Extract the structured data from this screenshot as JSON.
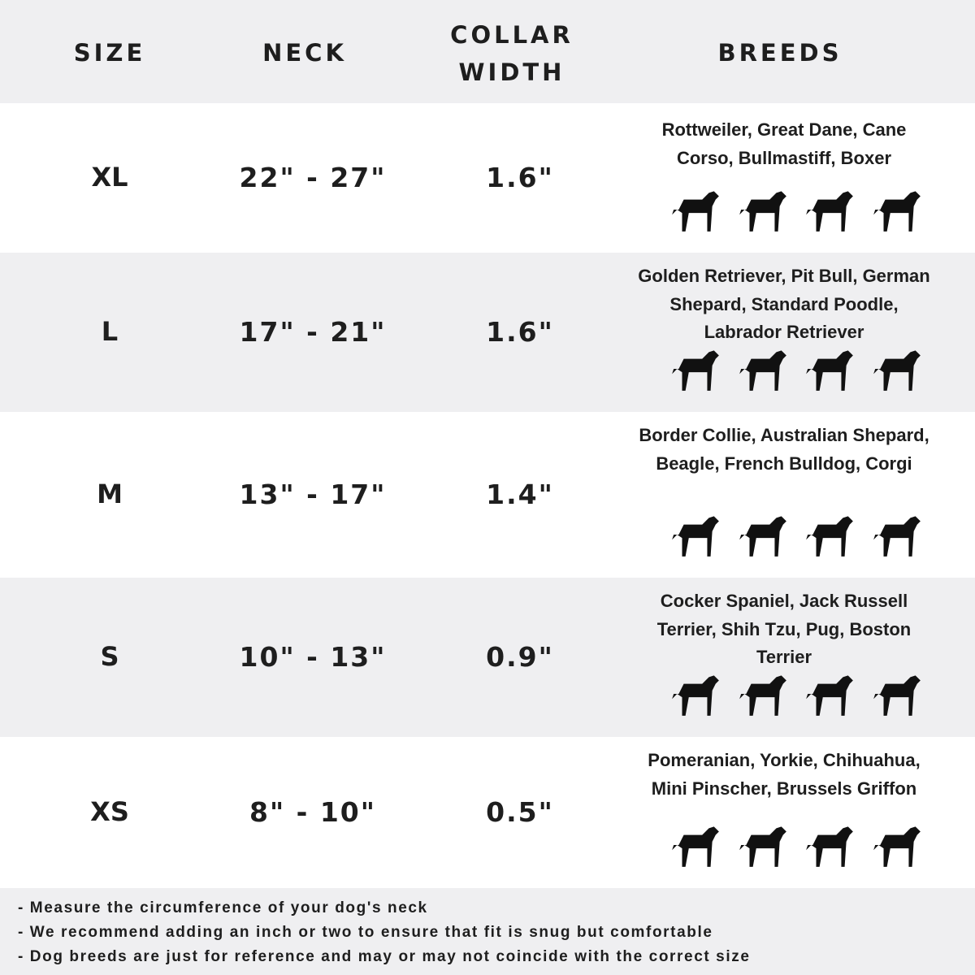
{
  "header": {
    "size": "SIZE",
    "neck": "NECK",
    "collar_width": "COLLAR WIDTH",
    "breeds": "BREEDS"
  },
  "rows": [
    {
      "size": "XL",
      "neck": "22\" - 27\"",
      "collar_width": "1.6\"",
      "breeds": "Rottweiler, Great Dane, Cane Corso, Bullmastiff, Boxer",
      "icons": [
        "rottweiler-icon",
        "great-dane-icon",
        "doberman-icon",
        "bullmastiff-icon"
      ]
    },
    {
      "size": "L",
      "neck": "17\" - 21\"",
      "collar_width": "1.6\"",
      "breeds": "Golden Retriever, Pit Bull, German Shepard, Standard Poodle, Labrador Retriever",
      "icons": [
        "golden-retriever-icon",
        "labrador-icon",
        "poodle-icon",
        "german-shepherd-icon"
      ]
    },
    {
      "size": "M",
      "neck": "13\" - 17\"",
      "collar_width": "1.4\"",
      "breeds": "Border Collie, Australian Shepard, Beagle, French Bulldog, Corgi",
      "icons": [
        "border-collie-icon",
        "beagle-icon",
        "french-bulldog-icon",
        "corgi-icon"
      ]
    },
    {
      "size": "S",
      "neck": "10\" - 13\"",
      "collar_width": "0.9\"",
      "breeds": "Cocker Spaniel, Jack Russell Terrier, Shih Tzu, Pug, Boston Terrier",
      "icons": [
        "cocker-spaniel-icon",
        "jack-russell-icon",
        "shih-tzu-icon",
        "pug-icon"
      ]
    },
    {
      "size": "XS",
      "neck": "8\" - 10\"",
      "collar_width": "0.5\"",
      "breeds": "Pomeranian, Yorkie, Chihuahua, Mini Pinscher, Brussels Griffon",
      "icons": [
        "pomeranian-icon",
        "yorkie-icon",
        "chihuahua-icon",
        "mini-pinscher-icon"
      ]
    }
  ],
  "notes": [
    "- Measure the circumference of your dog's neck",
    "- We recommend adding an inch or two to ensure that fit is snug but comfortable",
    "- Dog breeds are just for reference and may or may not coincide with the correct size"
  ],
  "colors": {
    "band_grey": "#efeff1",
    "text": "#1e1e1e"
  }
}
